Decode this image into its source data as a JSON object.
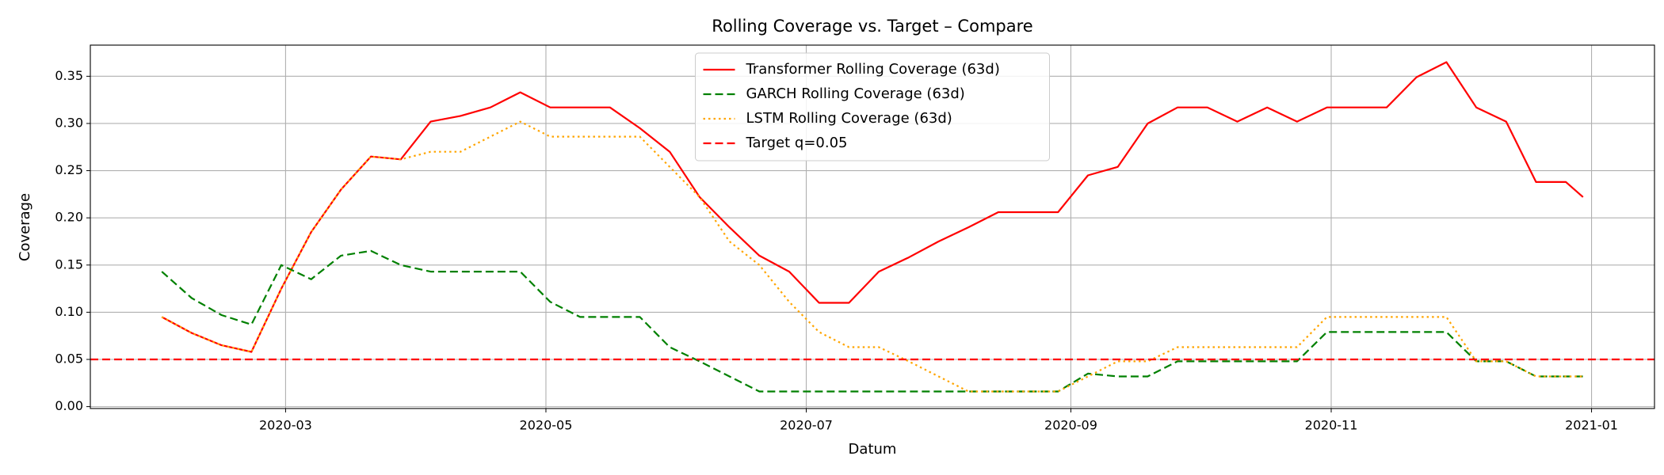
{
  "chart_data": {
    "type": "line",
    "title": "Rolling Coverage vs. Target – Compare",
    "x_label": "Datum",
    "y_label": "Coverage",
    "x": [
      32,
      39,
      46,
      53,
      60,
      67,
      74,
      81,
      88,
      95,
      102,
      109,
      116,
      123,
      130,
      137,
      144,
      151,
      158,
      165,
      172,
      179,
      186,
      193,
      200,
      207,
      214,
      221,
      228,
      235,
      242,
      249,
      256,
      263,
      270,
      277,
      284,
      291,
      298,
      305,
      312,
      319,
      326,
      333,
      340,
      347,
      354,
      361,
      365
    ],
    "series": [
      {
        "name": "Transformer Rolling Coverage (63d)",
        "color": "#ff0000",
        "style": "solid",
        "values": [
          0.095,
          0.078,
          0.065,
          0.058,
          0.125,
          0.185,
          0.23,
          0.265,
          0.262,
          0.302,
          0.308,
          0.317,
          0.333,
          0.317,
          0.317,
          0.317,
          0.295,
          0.27,
          0.222,
          0.19,
          0.16,
          0.143,
          0.11,
          0.11,
          0.143,
          0.158,
          0.175,
          0.19,
          0.206,
          0.206,
          0.206,
          0.245,
          0.254,
          0.3,
          0.317,
          0.317,
          0.302,
          0.317,
          0.302,
          0.317,
          0.317,
          0.317,
          0.349,
          0.365,
          0.317,
          0.302,
          0.238,
          0.238,
          0.222
        ]
      },
      {
        "name": "GARCH Rolling Coverage (63d)",
        "color": "#008000",
        "style": "dashed",
        "values": [
          0.143,
          0.115,
          0.097,
          0.087,
          0.15,
          0.135,
          0.16,
          0.165,
          0.15,
          0.143,
          0.143,
          0.143,
          0.143,
          0.111,
          0.095,
          0.095,
          0.095,
          0.063,
          0.048,
          0.032,
          0.016,
          0.016,
          0.016,
          0.016,
          0.016,
          0.016,
          0.016,
          0.016,
          0.016,
          0.016,
          0.016,
          0.035,
          0.032,
          0.032,
          0.048,
          0.048,
          0.048,
          0.048,
          0.048,
          0.079,
          0.079,
          0.079,
          0.079,
          0.079,
          0.048,
          0.048,
          0.032,
          0.032,
          0.032
        ]
      },
      {
        "name": "LSTM Rolling Coverage (63d)",
        "color": "#ffa500",
        "style": "dotted",
        "values": [
          0.095,
          0.078,
          0.065,
          0.058,
          0.125,
          0.185,
          0.23,
          0.265,
          0.262,
          0.27,
          0.27,
          0.286,
          0.302,
          0.286,
          0.286,
          0.286,
          0.286,
          0.254,
          0.222,
          0.175,
          0.15,
          0.111,
          0.079,
          0.063,
          0.063,
          0.048,
          0.032,
          0.016,
          0.016,
          0.016,
          0.016,
          0.032,
          0.048,
          0.048,
          0.063,
          0.063,
          0.063,
          0.063,
          0.063,
          0.095,
          0.095,
          0.095,
          0.095,
          0.095,
          0.048,
          0.048,
          0.032,
          0.032,
          0.032
        ]
      }
    ],
    "hlines": [
      {
        "name": "Target q=0.05",
        "value": 0.05,
        "color": "#ff0000",
        "style": "dashed"
      }
    ],
    "xlim": [
      15.25,
      381.75
    ],
    "xticks": [
      {
        "value": 61,
        "label": "2020-03"
      },
      {
        "value": 122,
        "label": "2020-05"
      },
      {
        "value": 183,
        "label": "2020-07"
      },
      {
        "value": 245,
        "label": "2020-09"
      },
      {
        "value": 306,
        "label": "2020-11"
      },
      {
        "value": 367,
        "label": "2021-01"
      }
    ],
    "ylim": [
      -0.002,
      0.383
    ],
    "yticks": [
      {
        "value": 0,
        "label": "0.00"
      },
      {
        "value": 0.05,
        "label": "0.05"
      },
      {
        "value": 0.1,
        "label": "0.10"
      },
      {
        "value": 0.15,
        "label": "0.15"
      },
      {
        "value": 0.2,
        "label": "0.20"
      },
      {
        "value": 0.25,
        "label": "0.25"
      },
      {
        "value": 0.3,
        "label": "0.30"
      },
      {
        "value": 0.35,
        "label": "0.35"
      }
    ],
    "grid": true,
    "legend": "upper center"
  }
}
